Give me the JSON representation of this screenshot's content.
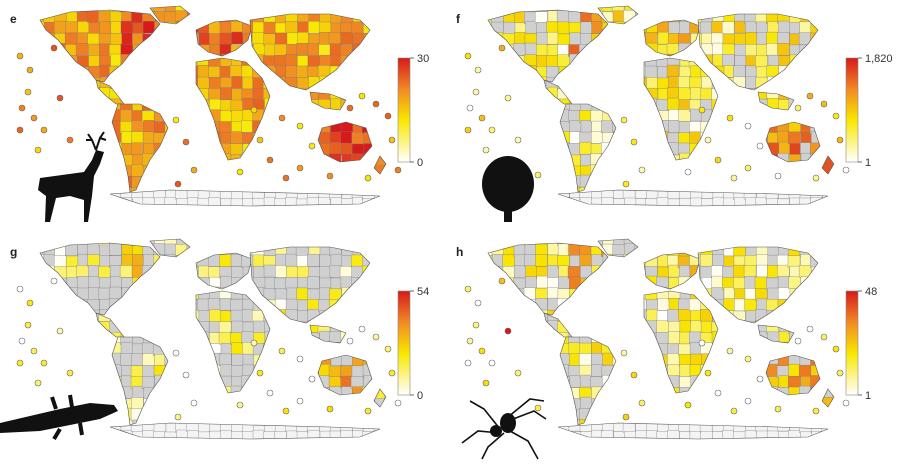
{
  "panels": [
    {
      "letter": "e",
      "scale_max": "30",
      "scale_min": "0",
      "low_color": "#ffffff",
      "high_color": "#d7191c",
      "icon": "deer-silhouette-icon",
      "intensity": 0.55
    },
    {
      "letter": "f",
      "scale_max": "1,820",
      "scale_min": "1",
      "low_color": "#ffffff",
      "high_color": "#d7191c",
      "icon": "tree-silhouette-icon",
      "intensity": 0.25
    },
    {
      "letter": "g",
      "scale_max": "54",
      "scale_min": "0",
      "low_color": "#ffffff",
      "high_color": "#d7191c",
      "icon": "gecko-silhouette-icon",
      "intensity": 0.1
    },
    {
      "letter": "h",
      "scale_max": "48",
      "scale_min": "1",
      "low_color": "#ffffff",
      "high_color": "#d7191c",
      "icon": "spider-silhouette-icon",
      "intensity": 0.18
    }
  ],
  "colors": {
    "no_data": "#d0d0d0",
    "border": "#888888",
    "mid": "#f5e400",
    "orange": "#f08a24"
  }
}
